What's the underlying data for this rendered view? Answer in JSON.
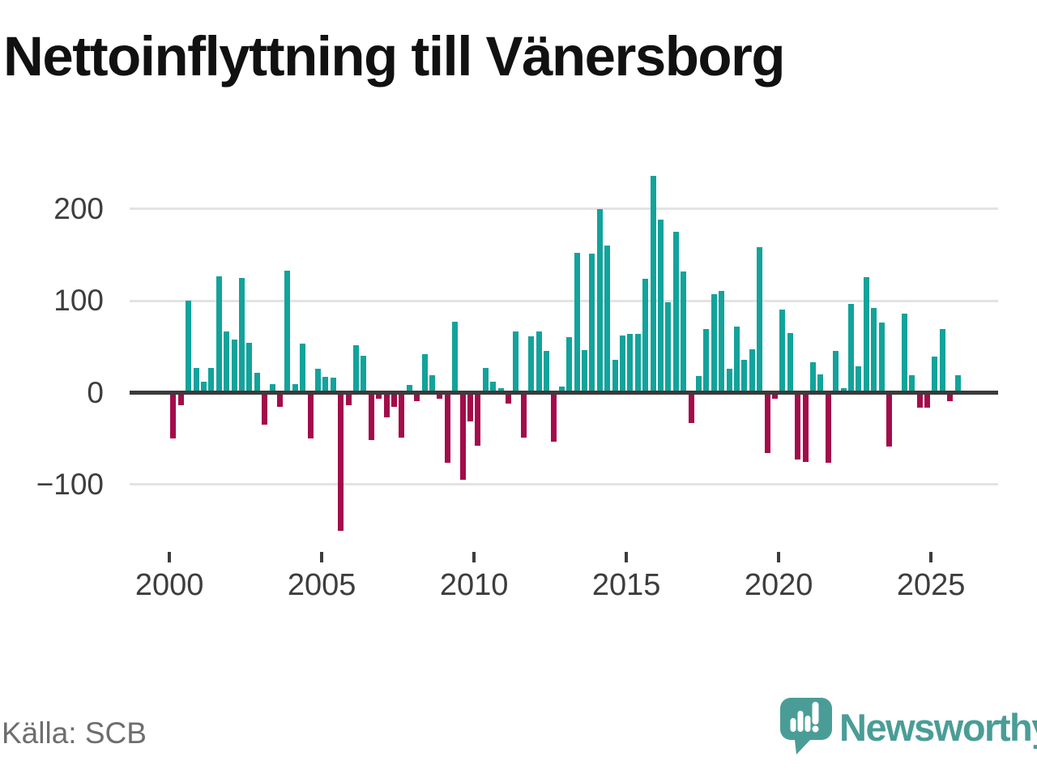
{
  "title": "Nettoinflyttning till Vänersborg",
  "source": "Källa: SCB",
  "branding": {
    "wordmark": "Newsworthy",
    "logo_icon": "newsworthy-pin-bar-chart-icon"
  },
  "colors": {
    "background": "#ffffff",
    "positive_bar": "#12a39b",
    "negative_bar": "#a30c4a",
    "axis": "#3b3b3b",
    "grid": "#e3e3e3",
    "tick_label": "#3d3d3d",
    "title_text": "#111111",
    "source_text": "#6e6e6e",
    "brand_teal": "#4a9d97",
    "logo_bars_white": "#ffffff"
  },
  "chart_data": {
    "type": "bar",
    "title": "Nettoinflyttning till Vänersborg",
    "frequency": "quarterly",
    "unit": "persons (net migration per quarter)",
    "xlabel": "",
    "ylabel": "",
    "grid": true,
    "ylim": [
      -160,
      245
    ],
    "y_axis": {
      "ticks": [
        {
          "value": 200,
          "label": "200"
        },
        {
          "value": 100,
          "label": "100"
        },
        {
          "value": 0,
          "label": "0"
        },
        {
          "value": -100,
          "label": "−100"
        }
      ]
    },
    "x_axis": {
      "tick_years": [
        2000,
        2005,
        2010,
        2015,
        2020,
        2025
      ],
      "tick_labels": [
        "2000",
        "2005",
        "2010",
        "2015",
        "2020",
        "2025"
      ]
    },
    "series_by_year": [
      {
        "year": 2000,
        "values": [
          -50,
          -14,
          100,
          27
        ]
      },
      {
        "year": 2001,
        "values": [
          12,
          27,
          127,
          67
        ]
      },
      {
        "year": 2002,
        "values": [
          58,
          125,
          54,
          22
        ]
      },
      {
        "year": 2003,
        "values": [
          -35,
          9,
          -15,
          133
        ]
      },
      {
        "year": 2004,
        "values": [
          9,
          53,
          -50,
          26
        ]
      },
      {
        "year": 2005,
        "values": [
          17,
          16,
          -150,
          -14
        ]
      },
      {
        "year": 2006,
        "values": [
          52,
          40,
          -52,
          -7
        ]
      },
      {
        "year": 2007,
        "values": [
          -27,
          -15,
          -49,
          8
        ]
      },
      {
        "year": 2008,
        "values": [
          -9,
          42,
          19,
          -7
        ]
      },
      {
        "year": 2009,
        "values": [
          -76,
          77,
          -95,
          -31
        ]
      },
      {
        "year": 2010,
        "values": [
          -58,
          27,
          12,
          5
        ]
      },
      {
        "year": 2011,
        "values": [
          -12,
          67,
          -49,
          61
        ]
      },
      {
        "year": 2012,
        "values": [
          67,
          45,
          -53,
          7
        ]
      },
      {
        "year": 2013,
        "values": [
          60,
          152,
          46,
          151
        ]
      },
      {
        "year": 2014,
        "values": [
          200,
          160,
          36,
          62
        ]
      },
      {
        "year": 2015,
        "values": [
          64,
          64,
          124,
          236
        ]
      },
      {
        "year": 2016,
        "values": [
          188,
          98,
          175,
          132
        ]
      },
      {
        "year": 2017,
        "values": [
          -33,
          18,
          69,
          107
        ]
      },
      {
        "year": 2018,
        "values": [
          111,
          26,
          72,
          36
        ]
      },
      {
        "year": 2019,
        "values": [
          47,
          158,
          -66,
          -7
        ]
      },
      {
        "year": 2020,
        "values": [
          90,
          65,
          -73,
          -75
        ]
      },
      {
        "year": 2021,
        "values": [
          33,
          20,
          -76,
          45
        ]
      },
      {
        "year": 2022,
        "values": [
          5,
          97,
          29,
          126
        ]
      },
      {
        "year": 2023,
        "values": [
          92,
          76,
          -59,
          0
        ]
      },
      {
        "year": 2024,
        "values": [
          86,
          19,
          -16,
          -16
        ]
      },
      {
        "year": 2025,
        "values": [
          39,
          69,
          -9,
          19
        ]
      }
    ]
  }
}
